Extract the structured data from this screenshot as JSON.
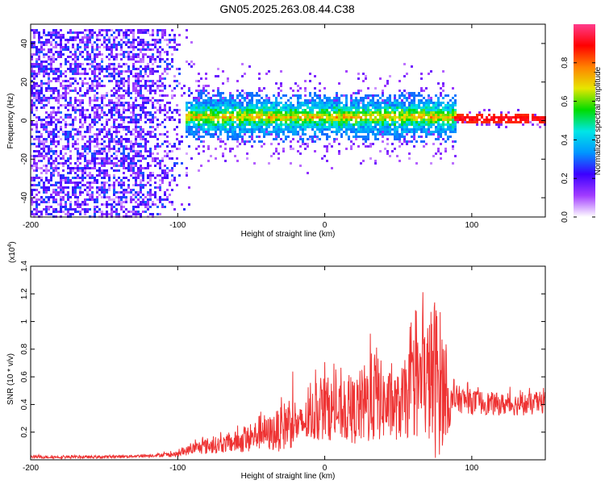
{
  "title": "GN05.2025.263.08.44.C38",
  "chart_data": [
    {
      "type": "heatmap",
      "xlabel": "Height of straight line (km)",
      "ylabel": "Frequency (Hz)",
      "xlim": [
        -200,
        150
      ],
      "ylim": [
        -50,
        50
      ],
      "xticks": [
        -200,
        -100,
        0,
        100
      ],
      "yticks": [
        -40,
        -20,
        0,
        20,
        40
      ],
      "colorbar": {
        "label": "Normalized spectral amplitude",
        "range": [
          0,
          1
        ],
        "ticks": [
          "0.0",
          "0.2",
          "0.4",
          "0.6",
          "0.8"
        ],
        "colors": [
          "#ffffff",
          "#a23cff",
          "#3c00ff",
          "#0096ff",
          "#00e6e6",
          "#00dc00",
          "#e6e600",
          "#ff8200",
          "#ff0000",
          "#ff3c8c"
        ]
      },
      "regions": [
        {
          "x_range": [
            -200,
            -90
          ],
          "freq_range": [
            -50,
            48
          ],
          "amplitude": [
            0.05,
            0.3
          ],
          "note": "scattered noise"
        },
        {
          "x_range": [
            -95,
            90
          ],
          "freq_center": 2,
          "freq_halfwidth": [
            6,
            14
          ],
          "amplitude": [
            0.3,
            0.85
          ]
        },
        {
          "x_range": [
            88,
            150
          ],
          "freq_center": 1,
          "freq_halfwidth": [
            1,
            3
          ],
          "amplitude": [
            0.85,
            1.0
          ]
        }
      ]
    },
    {
      "type": "line",
      "xlabel": "Height of straight line (km)",
      "ylabel": "SNR (10 * v/v)",
      "y_multiplier": "(x10",
      "y_multiplier_exp": "4",
      "y_multiplier_close": ")",
      "xlim": [
        -200,
        150
      ],
      "ylim": [
        0,
        1.4
      ],
      "xticks": [
        -200,
        -100,
        0,
        100
      ],
      "yticks": [
        0.2,
        0.4,
        0.6,
        0.8,
        1.0,
        1.2,
        1.4
      ],
      "color": "#ee3333",
      "series": [
        {
          "x": [
            -200,
            -150,
            -120,
            -100,
            -90,
            -80,
            -70,
            -60,
            -50,
            -42,
            -40,
            -30,
            -22,
            -18,
            -10,
            0,
            10,
            20,
            30,
            35,
            40,
            50,
            60,
            65,
            70,
            75,
            78,
            82,
            85,
            90,
            100,
            120,
            140,
            150
          ],
          "y_center": [
            0.02,
            0.02,
            0.03,
            0.04,
            0.08,
            0.1,
            0.11,
            0.13,
            0.15,
            0.22,
            0.18,
            0.22,
            0.3,
            0.24,
            0.3,
            0.38,
            0.34,
            0.35,
            0.42,
            0.48,
            0.4,
            0.38,
            0.5,
            0.55,
            0.58,
            0.6,
            0.58,
            0.5,
            0.38,
            0.44,
            0.42,
            0.4,
            0.4,
            0.42
          ],
          "y_spread": [
            0.01,
            0.01,
            0.01,
            0.02,
            0.04,
            0.06,
            0.06,
            0.08,
            0.1,
            0.14,
            0.12,
            0.16,
            0.22,
            0.12,
            0.18,
            0.24,
            0.2,
            0.24,
            0.32,
            0.36,
            0.26,
            0.24,
            0.35,
            0.4,
            0.45,
            0.6,
            0.55,
            0.35,
            0.15,
            0.1,
            0.09,
            0.08,
            0.08,
            0.08
          ]
        }
      ]
    }
  ]
}
